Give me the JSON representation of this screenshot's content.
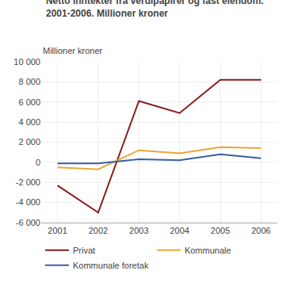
{
  "chart_data": {
    "type": "line",
    "title": "Netto inntekter fra verdipapirer og fast eiendom.",
    "subtitle": "2001-2006. Millioner kroner",
    "y_label": "Millioner kroner",
    "x": [
      2001,
      2002,
      2003,
      2004,
      2005,
      2006
    ],
    "series": [
      {
        "name": "Privat",
        "color": "#8B1A1A",
        "values": [
          -2300,
          -5000,
          6100,
          4900,
          8200,
          8200
        ]
      },
      {
        "name": "Kommunale",
        "color": "#E8A838",
        "values": [
          -500,
          -700,
          1200,
          900,
          1500,
          1400
        ]
      },
      {
        "name": "Kommunale foretak",
        "color": "#3A5FA0",
        "values": [
          -100,
          -100,
          300,
          200,
          800,
          400
        ]
      }
    ],
    "xlim": [
      2000.6,
      2006.4
    ],
    "xticks": [
      2001,
      2002,
      2003,
      2004,
      2005,
      2006
    ],
    "ylim": [
      -6000,
      10000
    ],
    "yticks": [
      {
        "value": -6000,
        "label": "-6 000"
      },
      {
        "value": -4000,
        "label": "-4 000"
      },
      {
        "value": -2000,
        "label": "-2 000"
      },
      0,
      {
        "value": 2000,
        "label": "2 000"
      },
      {
        "value": 4000,
        "label": "4 000"
      },
      {
        "value": 6000,
        "label": "6 000"
      },
      {
        "value": 8000,
        "label": "8 000"
      },
      {
        "value": 10000,
        "label": "10 000"
      }
    ],
    "grid": true,
    "legend": "bottom"
  }
}
